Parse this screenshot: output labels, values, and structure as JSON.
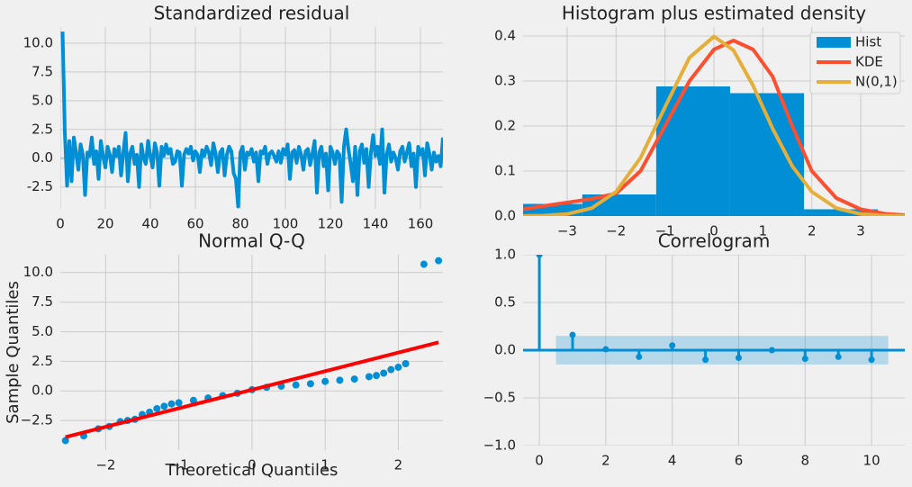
{
  "chart_data": [
    {
      "type": "line",
      "title": "Standardized residual",
      "xlim": [
        0,
        170
      ],
      "ylim": [
        -4.4,
        11.4
      ],
      "xticks": [
        0,
        20,
        40,
        60,
        80,
        100,
        120,
        140,
        160
      ],
      "yticks": [
        -2.5,
        {
          "value": 0,
          "label": "0.0"
        },
        2.5,
        {
          "value": 5,
          "label": "5.0"
        },
        7.5,
        {
          "value": 10,
          "label": "10.0"
        }
      ],
      "grid": true,
      "series": [
        {
          "color": "#008fd5",
          "x": [
            1,
            2,
            3,
            4,
            5,
            6,
            7,
            8,
            9,
            10,
            11,
            12,
            13,
            14,
            15,
            16,
            17,
            18,
            19,
            20,
            21,
            22,
            23,
            24,
            25,
            26,
            27,
            28,
            29,
            30,
            31,
            32,
            33,
            34,
            35,
            36,
            37,
            38,
            39,
            40,
            41,
            42,
            43,
            44,
            45,
            46,
            47,
            48,
            49,
            50,
            51,
            52,
            53,
            54,
            55,
            56,
            57,
            58,
            59,
            60,
            61,
            62,
            63,
            64,
            65,
            66,
            67,
            68,
            69,
            70,
            71,
            72,
            73,
            74,
            75,
            76,
            77,
            78,
            79,
            80,
            81,
            82,
            83,
            84,
            85,
            86,
            87,
            88,
            89,
            90,
            91,
            92,
            93,
            94,
            95,
            96,
            97,
            98,
            99,
            100,
            101,
            102,
            103,
            104,
            105,
            106,
            107,
            108,
            109,
            110,
            111,
            112,
            113,
            114,
            115,
            116,
            117,
            118,
            119,
            120,
            121,
            122,
            123,
            124,
            125,
            126,
            127,
            128,
            129,
            130,
            131,
            132,
            133,
            134,
            135,
            136,
            137,
            138,
            139,
            140,
            141,
            142,
            143,
            144,
            145,
            146,
            147,
            148,
            149,
            150,
            151,
            152,
            153,
            154,
            155,
            156,
            157,
            158,
            159,
            160,
            161,
            162,
            163,
            164,
            165,
            166,
            167,
            168,
            169,
            170
          ],
          "values": [
            11,
            2.3,
            -2.4,
            1.5,
            -2.0,
            1.8,
            0.5,
            -1.0,
            1.2,
            0.3,
            -3.2,
            0.5,
            0.2,
            1.8,
            -0.5,
            0.6,
            -1.8,
            1.5,
            0.2,
            -0.8,
            1.0,
            0.3,
            -1.2,
            0.8,
            0.2,
            1.0,
            -1.5,
            0.5,
            2.2,
            -2.0,
            0.4,
            1.0,
            -0.5,
            0.3,
            -2.5,
            1.2,
            0.0,
            -0.5,
            1.5,
            0.2,
            -0.8,
            1.3,
            0.5,
            -2.4,
            1.0,
            0.2,
            1.2,
            0.4,
            0.8,
            -0.5,
            -0.3,
            0.6,
            0.5,
            -2.4,
            0.3,
            0.8,
            0.4,
            1.0,
            -0.2,
            0.6,
            0.3,
            -1.2,
            0.7,
            0.2,
            1.0,
            0.5,
            -0.6,
            1.3,
            0.4,
            -1.2,
            0.5,
            0.8,
            -1.5,
            0.3,
            1.0,
            0.6,
            -1.3,
            -1.8,
            -4.2,
            0.5,
            1.0,
            -1.0,
            0.5,
            0.3,
            0.8,
            -0.3,
            0.5,
            -2.0,
            0.6,
            0.4,
            1.0,
            -0.5,
            0.4,
            0.6,
            0.2,
            -0.3,
            0.6,
            -0.4,
            0.8,
            0.3,
            1.2,
            -1.8,
            0.5,
            0.7,
            -0.4,
            1.0,
            0.3,
            -1.0,
            0.6,
            0.8,
            -0.6,
            0.4,
            1.5,
            -3.0,
            0.5,
            1.0,
            -0.7,
            0.4,
            -2.8,
            1.0,
            0.5,
            -0.5,
            0.6,
            0.3,
            -3.8,
            1.0,
            2.5,
            0.8,
            -0.5,
            -2.0,
            1.0,
            -3.2,
            0.6,
            1.2,
            -0.4,
            0.8,
            -2.5,
            0.5,
            2.0,
            0.2,
            1.0,
            -0.5,
            2.5,
            -3.0,
            0.3,
            1.2,
            -0.3,
            0.5,
            0.0,
            -1.0,
            0.6,
            1.0,
            -0.3,
            0.5,
            1.3,
            -0.7,
            0.4,
            -2.5,
            1.0,
            0.3,
            0.8,
            -1.5,
            1.3,
            0.4,
            -1.0,
            0.5,
            -0.3,
            0.2,
            -0.7,
            1.8
          ]
        }
      ]
    },
    {
      "type": "histogram",
      "title": "Histogram plus estimated density",
      "xlim": [
        -3.9,
        3.9
      ],
      "ylim": [
        0,
        0.42
      ],
      "xticks": [
        {
          "value": -3,
          "label": "−3"
        },
        {
          "value": -2,
          "label": "−2"
        },
        {
          "value": -1,
          "label": "−1"
        },
        0,
        1,
        2,
        3
      ],
      "yticks": [
        {
          "value": 0,
          "label": "0.0"
        },
        0.1,
        0.2,
        0.3,
        0.4
      ],
      "grid": true,
      "legend": "upper right",
      "series": [
        {
          "name": "Hist",
          "type": "bar",
          "color": "#008fd5",
          "bins": [
            -4.2,
            -2.69,
            -1.18,
            0.33,
            1.84,
            3.35
          ],
          "values": [
            0.027,
            0.048,
            0.288,
            0.273,
            0.015
          ]
        },
        {
          "name": "KDE",
          "type": "line",
          "color": "#fc4f30",
          "x": [
            -3.9,
            -3.5,
            -3,
            -2.5,
            -2,
            -1.5,
            -1,
            -0.5,
            0,
            0.4,
            0.8,
            1.2,
            1.6,
            2,
            2.5,
            3,
            3.5,
            3.9
          ],
          "values": [
            0.015,
            0.022,
            0.03,
            0.038,
            0.05,
            0.1,
            0.2,
            0.3,
            0.37,
            0.39,
            0.37,
            0.31,
            0.2,
            0.1,
            0.04,
            0.015,
            0.005,
            0.002
          ]
        },
        {
          "name": "N(0,1)",
          "type": "line",
          "color": "#e5ae38",
          "x": [
            -3.9,
            -3.5,
            -3,
            -2.5,
            -2,
            -1.5,
            -1,
            -0.5,
            0,
            0.4,
            0.8,
            1.2,
            1.6,
            2,
            2.5,
            3,
            3.5,
            3.9
          ],
          "values": [
            0.0002,
            0.0009,
            0.0044,
            0.0175,
            0.054,
            0.1295,
            0.242,
            0.3521,
            0.3989,
            0.3683,
            0.2897,
            0.1942,
            0.1109,
            0.054,
            0.0175,
            0.0044,
            0.0009,
            0.0002
          ]
        }
      ]
    },
    {
      "type": "scatter",
      "title": "Normal Q-Q",
      "x_label": "Theoretical Quantiles",
      "y_label": "Sample Quantiles",
      "xlim": [
        -2.62,
        2.61
      ],
      "ylim": [
        -5.0,
        11.5
      ],
      "xticks": [
        {
          "value": -2,
          "label": "−2"
        },
        {
          "value": -1,
          "label": "−1"
        },
        0,
        1,
        2
      ],
      "yticks": [
        {
          "value": -2.5,
          "label": "−2.5"
        },
        {
          "value": 0,
          "label": "0.0"
        },
        2.5,
        {
          "value": 5,
          "label": "5.0"
        },
        7.5,
        {
          "value": 10,
          "label": "10.0"
        }
      ],
      "grid": true,
      "series": [
        {
          "type": "scatter",
          "color": "#008fd5",
          "x": [
            -2.55,
            -2.3,
            -2.1,
            -1.95,
            -1.8,
            -1.7,
            -1.6,
            -1.5,
            -1.4,
            -1.3,
            -1.2,
            -1.1,
            -1.0,
            -0.8,
            -0.6,
            -0.4,
            -0.2,
            0,
            0.2,
            0.4,
            0.6,
            0.8,
            1.0,
            1.2,
            1.4,
            1.6,
            1.7,
            1.8,
            1.9,
            2.0,
            2.1,
            2.35,
            2.55
          ],
          "values": [
            -4.2,
            -3.8,
            -3.2,
            -3.0,
            -2.6,
            -2.5,
            -2.4,
            -2.0,
            -1.8,
            -1.5,
            -1.3,
            -1.1,
            -1.0,
            -0.8,
            -0.6,
            -0.4,
            -0.2,
            0.1,
            0.3,
            0.4,
            0.5,
            0.6,
            0.8,
            0.9,
            1.0,
            1.2,
            1.3,
            1.5,
            1.8,
            2.0,
            2.3,
            10.7,
            11.0
          ]
        },
        {
          "type": "line",
          "color": "#ff0000",
          "x": [
            -2.55,
            2.55
          ],
          "values": [
            -3.9,
            4.1
          ]
        }
      ]
    },
    {
      "type": "stem",
      "title": "Correlogram",
      "xlim": [
        -0.49,
        11.0
      ],
      "ylim": [
        -1,
        1
      ],
      "xticks": [
        0,
        2,
        4,
        6,
        8,
        10
      ],
      "yticks": [
        {
          "value": -1,
          "label": "−1.0"
        },
        {
          "value": -0.5,
          "label": "−0.5"
        },
        {
          "value": 0,
          "label": "0.0"
        },
        0.5,
        {
          "value": 1,
          "label": "1.0"
        }
      ],
      "grid": true,
      "color": "#008fd5",
      "x": [
        0,
        1,
        2,
        3,
        4,
        5,
        6,
        7,
        8,
        9,
        10
      ],
      "values": [
        1,
        0.16,
        0.01,
        -0.07,
        0.05,
        -0.1,
        -0.08,
        0.0,
        -0.09,
        -0.07,
        -0.1
      ],
      "confidence": {
        "x": [
          0.5,
          10.5
        ],
        "lower": [
          -0.15,
          -0.15
        ],
        "upper": [
          0.15,
          0.15
        ]
      }
    }
  ]
}
